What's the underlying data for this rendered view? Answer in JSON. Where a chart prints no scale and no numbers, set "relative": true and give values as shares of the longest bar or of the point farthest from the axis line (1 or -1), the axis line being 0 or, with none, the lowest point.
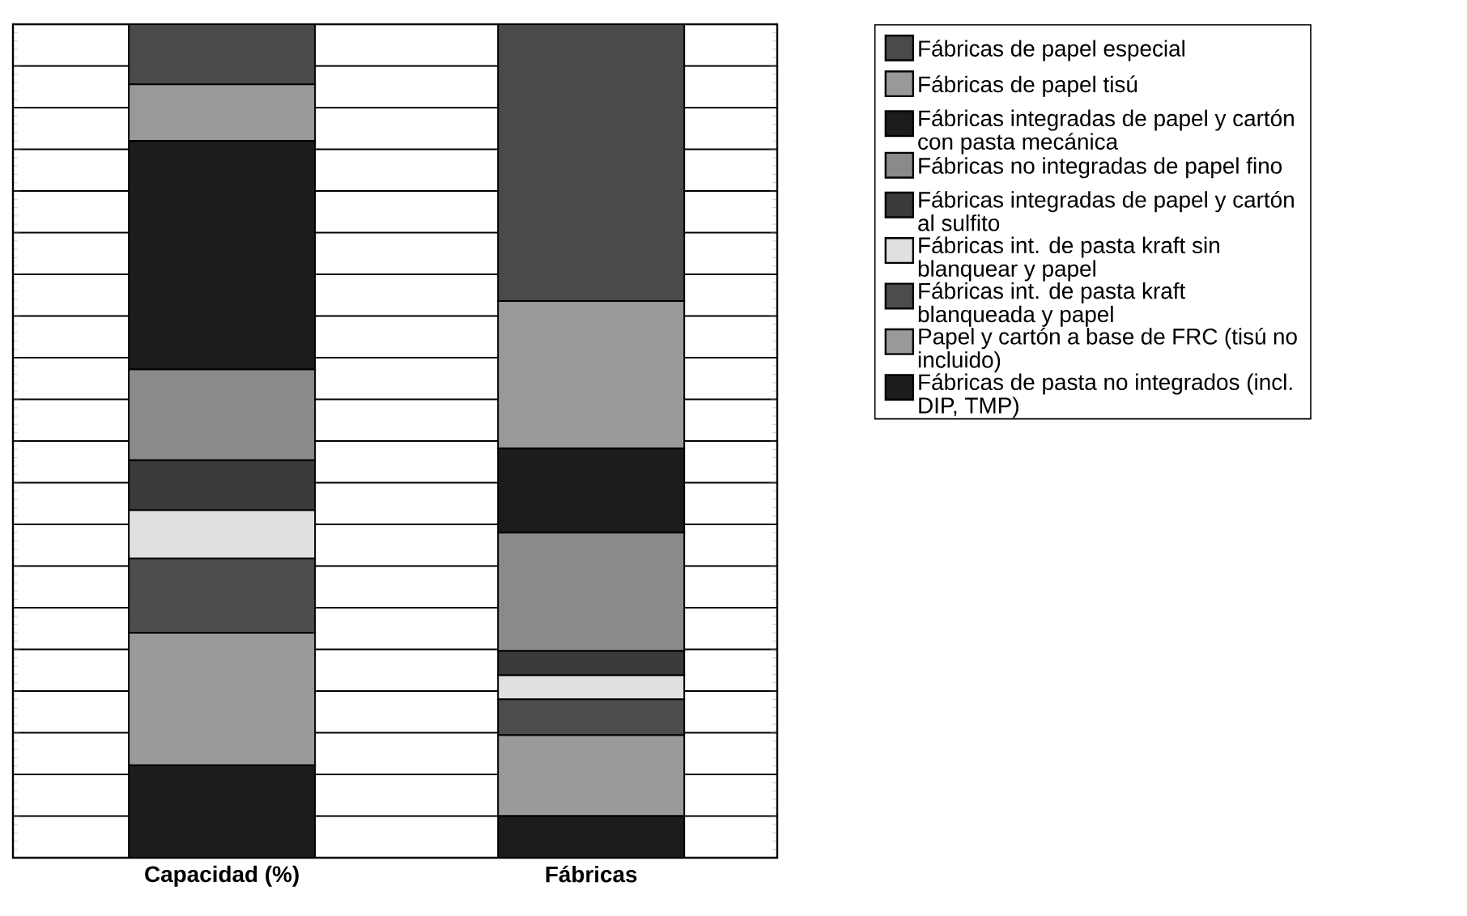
{
  "chart_data": {
    "type": "bar",
    "stacked": true,
    "relative": true,
    "grid": "y",
    "legend": "right",
    "categories": [
      "Capacidad (%)",
      "Fábricas"
    ],
    "series": [
      {
        "name": "Fábricas de pasta no integrados (incl. DIP, TMP)",
        "color": "#1c1c1c",
        "values": [
          0.111,
          0.05
        ]
      },
      {
        "name": "Papel y cartón a base de FRC (tisú no incluido)",
        "color": "#9a9a9a",
        "values": [
          0.159,
          0.097
        ]
      },
      {
        "name": "Fábricas int. de pasta kraft blanqueada y papel",
        "color": "#4c4c4c",
        "values": [
          0.089,
          0.043
        ]
      },
      {
        "name": "Fábricas int. de pasta kraft sin blanquear y papel",
        "color": "#e0e0e0",
        "values": [
          0.058,
          0.029
        ]
      },
      {
        "name": "Fábricas integradas de papel y cartón al sulfito",
        "color": "#3a3a3a",
        "values": [
          0.06,
          0.029
        ]
      },
      {
        "name": "Fábricas no integradas de papel fino",
        "color": "#8a8a8a",
        "values": [
          0.109,
          0.142
        ]
      },
      {
        "name": "Fábricas integradas de papel y cartón con pasta mecánica",
        "color": "#1c1c1c",
        "values": [
          0.274,
          0.101
        ]
      },
      {
        "name": "Fábricas de papel tisú",
        "color": "#999999",
        "values": [
          0.068,
          0.177
        ]
      },
      {
        "name": "Fábricas de papel especial",
        "color": "#4a4a4a",
        "values": [
          0.072,
          0.332
        ]
      }
    ]
  }
}
